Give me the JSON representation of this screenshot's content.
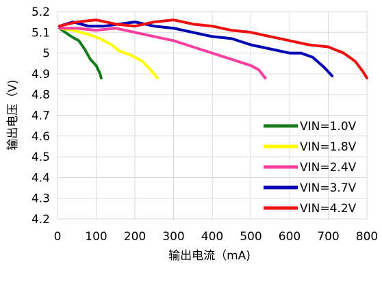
{
  "chart_data": {
    "type": "line",
    "title": "",
    "xlabel": "输出电流（mA)",
    "ylabel": "输出电压（V)",
    "xlim": [
      0,
      800
    ],
    "ylim": [
      4.2,
      5.2
    ],
    "x_ticks": [
      0,
      100,
      200,
      300,
      400,
      500,
      600,
      700,
      800
    ],
    "x_tick_labels": [
      "0",
      "100",
      "200",
      "300",
      "400",
      "500",
      "600",
      "700",
      "800"
    ],
    "y_ticks": [
      4.2,
      4.3,
      4.4,
      4.5,
      4.6,
      4.7,
      4.8,
      4.9,
      5.0,
      5.1,
      5.2
    ],
    "y_tick_labels": [
      "4.2",
      "4.3",
      "4.4",
      "4.5",
      "4.6",
      "4.7",
      "4.8",
      "4.9",
      "5",
      "5.1",
      "5.2"
    ],
    "grid": true,
    "legend_position": "center-right",
    "series": [
      {
        "name": "VIN=1.0V",
        "color": "#157a1a",
        "points": [
          [
            5,
            5.12
          ],
          [
            20,
            5.1
          ],
          [
            40,
            5.075
          ],
          [
            55,
            5.06
          ],
          [
            70,
            5.02
          ],
          [
            85,
            4.97
          ],
          [
            100,
            4.94
          ],
          [
            110,
            4.9
          ],
          [
            113,
            4.88
          ]
        ]
      },
      {
        "name": "VIN=1.8V",
        "color": "#ffff00",
        "points": [
          [
            5,
            5.12
          ],
          [
            40,
            5.11
          ],
          [
            80,
            5.09
          ],
          [
            110,
            5.07
          ],
          [
            140,
            5.04
          ],
          [
            160,
            5.01
          ],
          [
            190,
            4.99
          ],
          [
            220,
            4.96
          ],
          [
            245,
            4.91
          ],
          [
            258,
            4.88
          ]
        ]
      },
      {
        "name": "VIN=2.4V",
        "color": "#ff3fa0",
        "points": [
          [
            5,
            5.12
          ],
          [
            50,
            5.12
          ],
          [
            100,
            5.11
          ],
          [
            150,
            5.12
          ],
          [
            200,
            5.1
          ],
          [
            250,
            5.08
          ],
          [
            300,
            5.06
          ],
          [
            350,
            5.03
          ],
          [
            400,
            5.0
          ],
          [
            450,
            4.97
          ],
          [
            500,
            4.94
          ],
          [
            520,
            4.92
          ],
          [
            537,
            4.88
          ]
        ]
      },
      {
        "name": "VIN=3.7V",
        "color": "#0000b3",
        "points": [
          [
            5,
            5.13
          ],
          [
            40,
            5.15
          ],
          [
            80,
            5.13
          ],
          [
            120,
            5.13
          ],
          [
            160,
            5.14
          ],
          [
            200,
            5.15
          ],
          [
            250,
            5.13
          ],
          [
            300,
            5.12
          ],
          [
            350,
            5.1
          ],
          [
            400,
            5.08
          ],
          [
            450,
            5.07
          ],
          [
            500,
            5.04
          ],
          [
            550,
            5.02
          ],
          [
            600,
            5.0
          ],
          [
            630,
            5.0
          ],
          [
            660,
            4.98
          ],
          [
            690,
            4.93
          ],
          [
            710,
            4.89
          ]
        ]
      },
      {
        "name": "VIN=4.2V",
        "color": "#ee1111",
        "points": [
          [
            5,
            5.13
          ],
          [
            50,
            5.15
          ],
          [
            100,
            5.16
          ],
          [
            150,
            5.14
          ],
          [
            200,
            5.13
          ],
          [
            250,
            5.15
          ],
          [
            300,
            5.16
          ],
          [
            350,
            5.14
          ],
          [
            400,
            5.13
          ],
          [
            450,
            5.11
          ],
          [
            500,
            5.1
          ],
          [
            550,
            5.08
          ],
          [
            600,
            5.06
          ],
          [
            650,
            5.04
          ],
          [
            700,
            5.03
          ],
          [
            740,
            5.0
          ],
          [
            770,
            4.96
          ],
          [
            790,
            4.91
          ],
          [
            800,
            4.88
          ]
        ]
      }
    ]
  }
}
